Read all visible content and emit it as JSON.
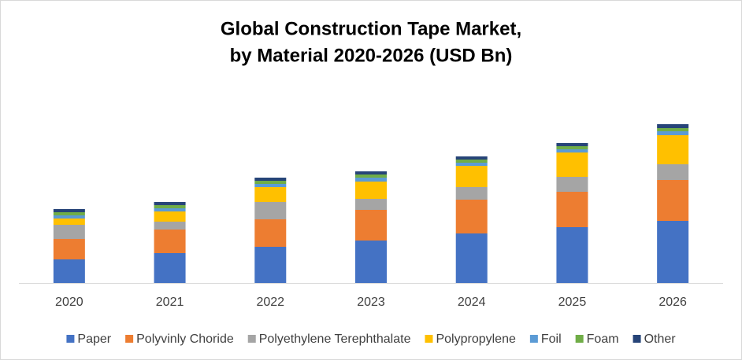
{
  "chart_data": {
    "type": "stacked-bar",
    "title": [
      "Global Construction Tape Market,",
      "by Material 2020-2026 (USD Bn)"
    ],
    "categories": [
      "2020",
      "2021",
      "2022",
      "2023",
      "2024",
      "2025",
      "2026"
    ],
    "series": [
      {
        "name": "Paper",
        "color": "#4472c4",
        "values": [
          30,
          38,
          46,
          54,
          63,
          71,
          79
        ]
      },
      {
        "name": "Polyvinly Choride",
        "color": "#ed7d31",
        "values": [
          26,
          30,
          35,
          39,
          43,
          45,
          52
        ]
      },
      {
        "name": "Polyethylene Terephthalate",
        "color": "#a5a5a5",
        "values": [
          18,
          10,
          22,
          14,
          16,
          19,
          20
        ]
      },
      {
        "name": "Polypropylene",
        "color": "#ffc000",
        "values": [
          8,
          13,
          19,
          22,
          27,
          31,
          37
        ]
      },
      {
        "name": "Foil",
        "color": "#5b9bd5",
        "values": [
          4,
          4,
          4,
          5,
          4,
          4,
          5
        ]
      },
      {
        "name": "Foam",
        "color": "#70ad47",
        "values": [
          4,
          4,
          4,
          4,
          4,
          4,
          4
        ]
      },
      {
        "name": "Other",
        "color": "#264478",
        "values": [
          4,
          4,
          4,
          4,
          4,
          4,
          5
        ]
      }
    ],
    "legend": "bottom"
  }
}
